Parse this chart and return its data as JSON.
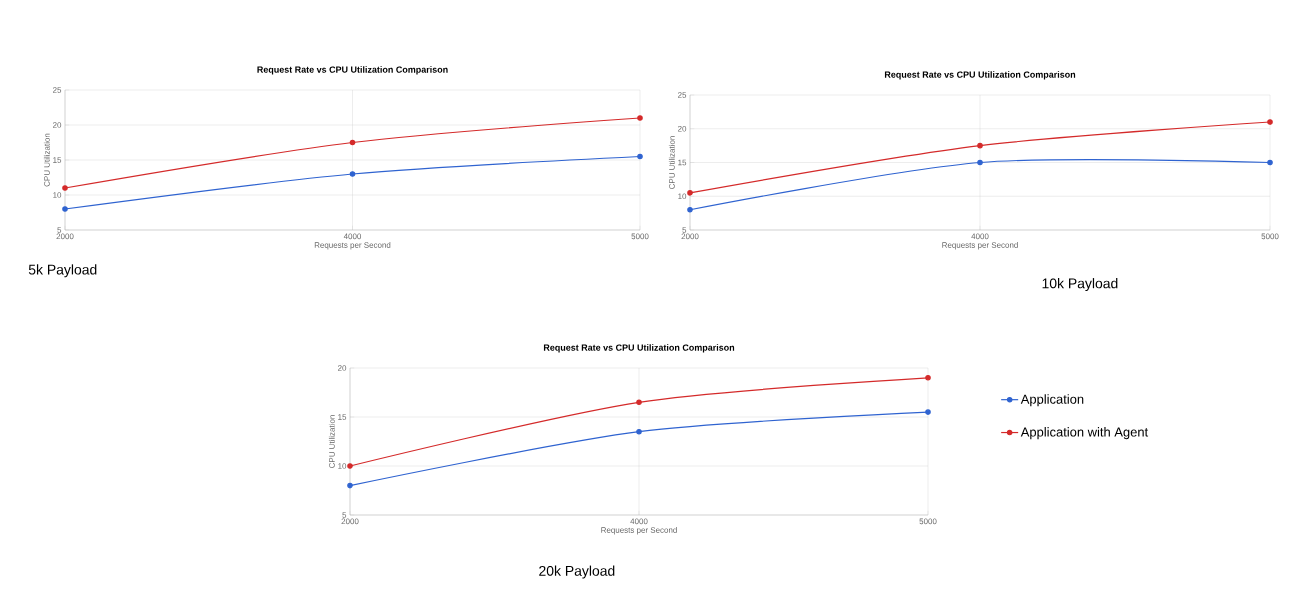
{
  "chart_data": [
    {
      "type": "line",
      "title": "Request Rate vs CPU Utilization Comparison",
      "xlabel": "Requests per Second",
      "ylabel": "CPU Utilization",
      "categories": [
        "2000",
        "4000",
        "5000"
      ],
      "ylim": [
        5,
        25
      ],
      "yticks": [
        5,
        10,
        15,
        20,
        25
      ],
      "grid": true,
      "marker": "circle",
      "annotations": [
        "5k Payload"
      ],
      "series": [
        {
          "color": "#2f63d0",
          "values": [
            8,
            13,
            15.5
          ]
        },
        {
          "color": "#d42a2a",
          "values": [
            11,
            17.5,
            21
          ]
        }
      ]
    },
    {
      "type": "line",
      "title": "Request Rate vs CPU Utilization Comparison",
      "xlabel": "Requests per Second",
      "ylabel": "CPU Utilization",
      "categories": [
        "2000",
        "4000",
        "5000"
      ],
      "ylim": [
        5,
        25
      ],
      "yticks": [
        5,
        10,
        15,
        20,
        25
      ],
      "grid": true,
      "marker": "circle",
      "annotations": [
        "10k Payload"
      ],
      "series": [
        {
          "color": "#2f63d0",
          "values": [
            8,
            15,
            15
          ]
        },
        {
          "color": "#d42a2a",
          "values": [
            10.5,
            17.5,
            21
          ]
        }
      ]
    },
    {
      "type": "line",
      "title": "Request Rate vs CPU Utilization Comparison",
      "xlabel": "Requests per Second",
      "ylabel": "CPU Utilization",
      "categories": [
        "2000",
        "4000",
        "5000"
      ],
      "ylim": [
        5,
        20
      ],
      "yticks": [
        5,
        10,
        15,
        20
      ],
      "grid": true,
      "marker": "circle",
      "legend": "right",
      "annotations": [
        "20k Payload"
      ],
      "series": [
        {
          "name": "Application",
          "color": "#2f63d0",
          "values": [
            8,
            13.5,
            15.5
          ]
        },
        {
          "name": "Application with Agent",
          "color": "#d42a2a",
          "values": [
            10,
            16.5,
            19
          ]
        }
      ]
    }
  ]
}
